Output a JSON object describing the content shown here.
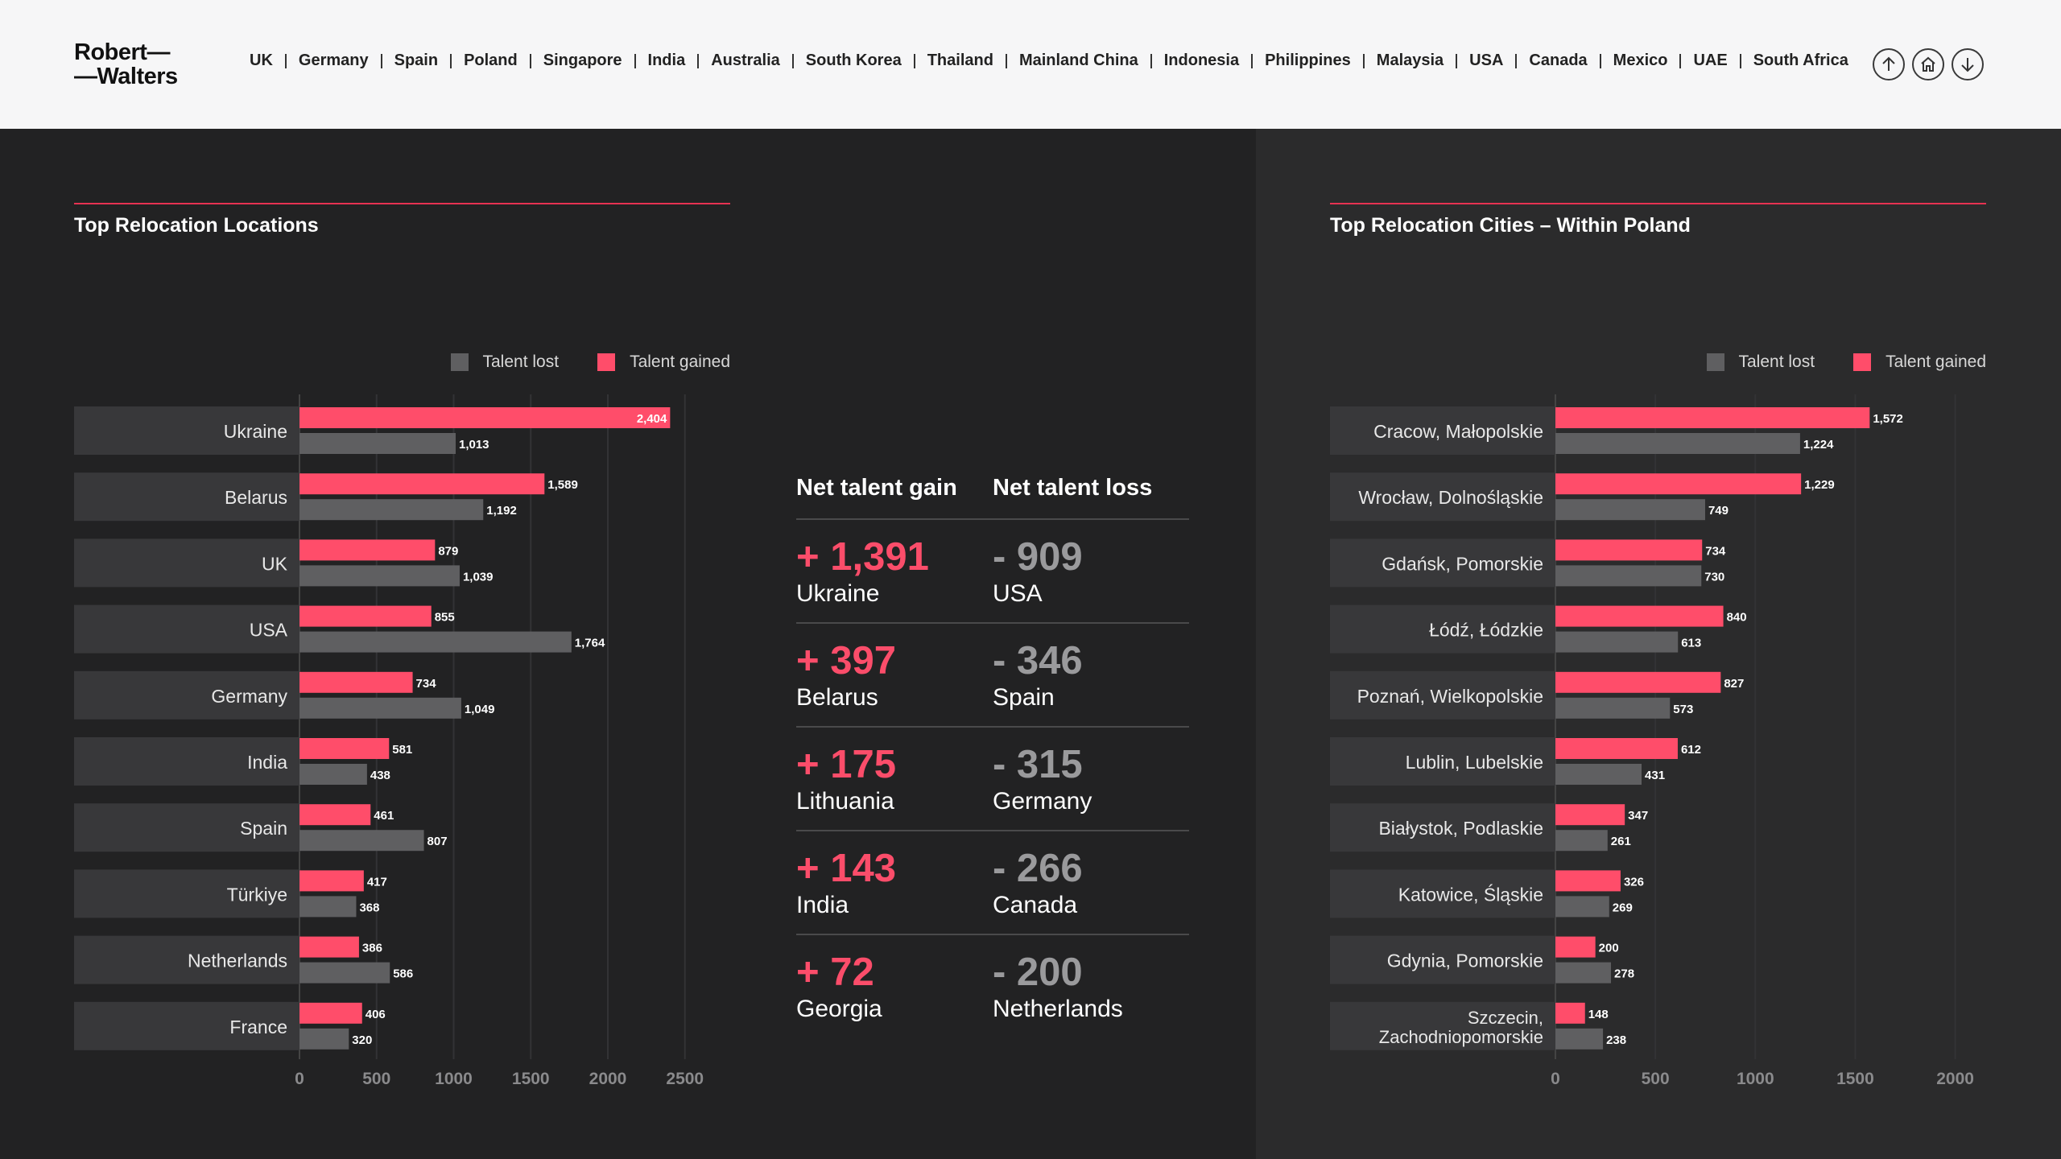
{
  "header": {
    "logo_line1": "Robert",
    "logo_line2": "Walters",
    "nav": [
      "UK",
      "Germany",
      "Spain",
      "Poland",
      "Singapore",
      "India",
      "Australia",
      "South Korea",
      "Thailand",
      "Mainland China",
      "Indonesia",
      "Philippines",
      "Malaysia",
      "USA",
      "Canada",
      "Mexico",
      "UAE",
      "South Africa"
    ],
    "buttons": [
      {
        "name": "arrow-up-icon"
      },
      {
        "name": "home-icon"
      },
      {
        "name": "arrow-down-icon"
      }
    ]
  },
  "colors": {
    "gained": "#ff4d6a",
    "lost": "#5f5f61",
    "accent": "#e63252"
  },
  "net_table": {
    "gain_header": "Net talent gain",
    "loss_header": "Net talent loss",
    "rows": [
      {
        "gain_value": "+ 1,391",
        "gain_country": "Ukraine",
        "loss_value": "- 909",
        "loss_country": "USA"
      },
      {
        "gain_value": "+ 397",
        "gain_country": "Belarus",
        "loss_value": "- 346",
        "loss_country": "Spain"
      },
      {
        "gain_value": "+ 175",
        "gain_country": "Lithuania",
        "loss_value": "- 315",
        "loss_country": "Germany"
      },
      {
        "gain_value": "+ 143",
        "gain_country": "India",
        "loss_value": "- 266",
        "loss_country": "Canada"
      },
      {
        "gain_value": "+ 72",
        "gain_country": "Georgia",
        "loss_value": "- 200",
        "loss_country": "Netherlands"
      }
    ]
  },
  "chart_data": [
    {
      "type": "bar",
      "orientation": "horizontal",
      "title": "Top Relocation Locations",
      "categories": [
        "Ukraine",
        "Belarus",
        "UK",
        "USA",
        "Germany",
        "India",
        "Spain",
        "Türkiye",
        "Netherlands",
        "France"
      ],
      "series": [
        {
          "name": "Talent gained",
          "values": [
            2404,
            1589,
            879,
            855,
            734,
            581,
            461,
            417,
            386,
            406
          ],
          "labels": [
            "2,404",
            "1,589",
            "879",
            "855",
            "734",
            "581",
            "461",
            "417",
            "386",
            "406"
          ]
        },
        {
          "name": "Talent lost",
          "values": [
            1013,
            1192,
            1039,
            1764,
            1049,
            438,
            807,
            368,
            586,
            320
          ],
          "labels": [
            "1,013",
            "1,192",
            "1,039",
            "1,764",
            "1,049",
            "438",
            "807",
            "368",
            "586",
            "320"
          ]
        }
      ],
      "xticks": [
        "0",
        "500",
        "1000",
        "1500",
        "2000",
        "2500"
      ],
      "xlim": [
        0,
        2500
      ],
      "legend": [
        "Talent lost",
        "Talent gained"
      ],
      "legend_position": "top-right",
      "grid": true
    },
    {
      "type": "bar",
      "orientation": "horizontal",
      "title": "Top Relocation Cities – Within Poland",
      "categories": [
        "Cracow, Małopolskie",
        "Wrocław, Dolnośląskie",
        "Gdańsk, Pomorskie",
        "Łódź, Łódzkie",
        "Poznań, Wielkopolskie",
        "Lublin, Lubelskie",
        "Białystok, Podlaskie",
        "Katowice, Śląskie",
        "Gdynia, Pomorskie",
        "Szczecin, Zachodniopomorskie"
      ],
      "series": [
        {
          "name": "Talent gained",
          "values": [
            1572,
            1229,
            734,
            840,
            827,
            612,
            347,
            326,
            200,
            148
          ],
          "labels": [
            "1,572",
            "1,229",
            "734",
            "840",
            "827",
            "612",
            "347",
            "326",
            "200",
            "148"
          ]
        },
        {
          "name": "Talent lost",
          "values": [
            1224,
            749,
            730,
            613,
            573,
            431,
            261,
            269,
            278,
            238
          ],
          "labels": [
            "1,224",
            "749",
            "730",
            "613",
            "573",
            "431",
            "261",
            "269",
            "278",
            "238"
          ]
        }
      ],
      "xticks": [
        "0",
        "500",
        "1000",
        "1500",
        "2000"
      ],
      "xlim": [
        0,
        2000
      ],
      "legend": [
        "Talent lost",
        "Talent gained"
      ],
      "legend_position": "top-right",
      "grid": true
    }
  ]
}
